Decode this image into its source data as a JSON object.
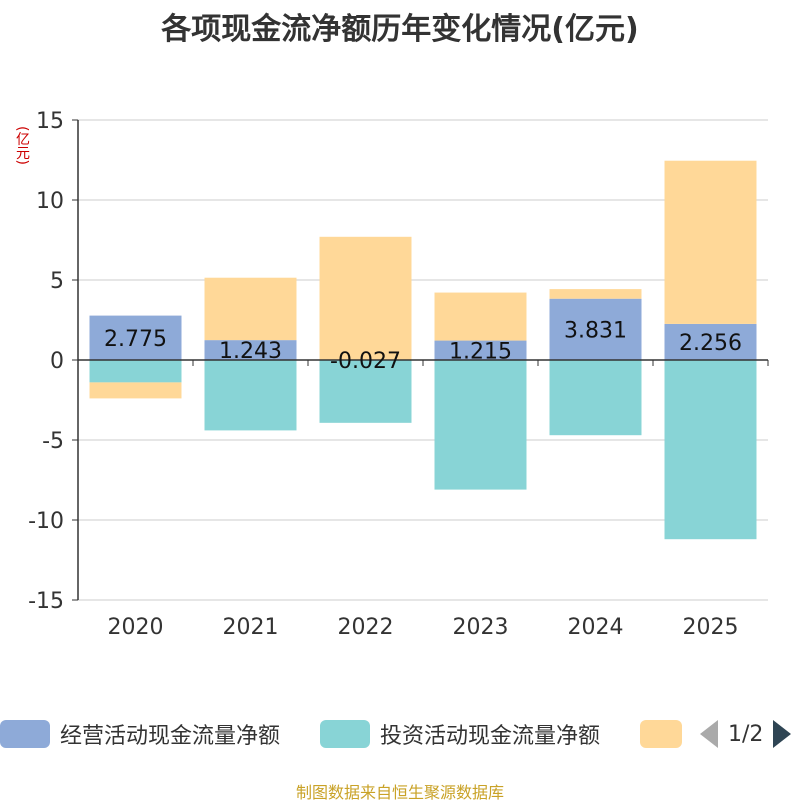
{
  "chart_data": {
    "type": "bar",
    "stacked": true,
    "title": "各项现金流净额历年变化情况(亿元)",
    "ylabel": "(亿元)",
    "categories": [
      "2020",
      "2021",
      "2022",
      "2023",
      "2024",
      "2025"
    ],
    "ylim": [
      -15,
      15
    ],
    "yticks": [
      15,
      10,
      5,
      0,
      -5,
      -10,
      -15
    ],
    "series": [
      {
        "name": "经营活动现金流量净额",
        "color": "#8eaad8",
        "values": [
          2.775,
          1.243,
          -0.027,
          1.215,
          3.831,
          2.256
        ],
        "labels": [
          "2.775",
          "1.243",
          "-0.027",
          "1.215",
          "3.831",
          "2.256"
        ]
      },
      {
        "name": "投资活动现金流量净额",
        "color": "#88d4d6",
        "values": [
          -1.4,
          -4.4,
          -3.9,
          -8.1,
          -4.7,
          -11.2
        ]
      },
      {
        "name": "",
        "color": "#ffd898",
        "values": [
          -1.0,
          3.9,
          7.7,
          3.0,
          0.6,
          10.2
        ]
      }
    ]
  },
  "legend": {
    "items": [
      {
        "label": "经营活动现金流量净额",
        "color": "#8eaad8"
      },
      {
        "label": "投资活动现金流量净额",
        "color": "#88d4d6"
      },
      {
        "label": "",
        "color": "#ffd898"
      }
    ],
    "page": "1/2"
  },
  "source": "制图数据来自恒生聚源数据库"
}
